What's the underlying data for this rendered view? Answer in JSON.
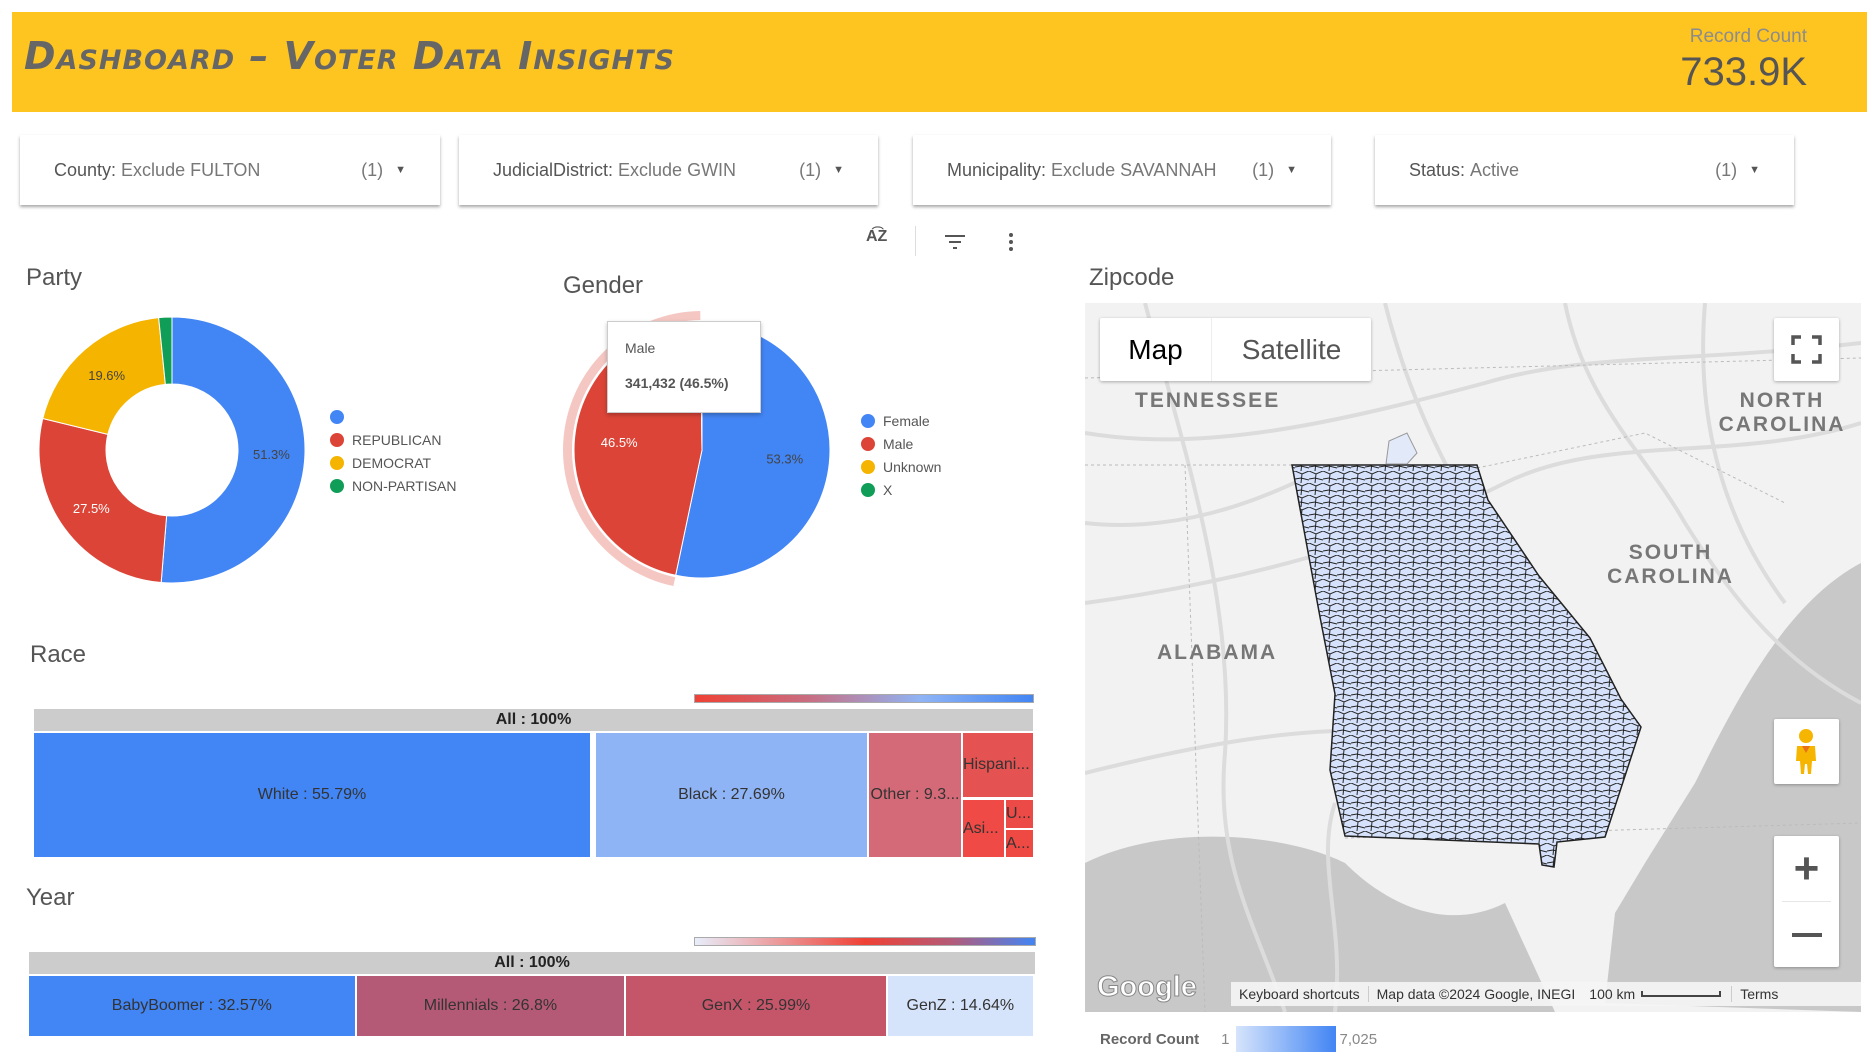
{
  "header": {
    "title": "Dashboard – Voter Data Insights",
    "record_count_label": "Record Count",
    "record_count_value": "733.9K",
    "background": "#fec420"
  },
  "filters": [
    {
      "key": "County:",
      "value": "Exclude FULTON",
      "count": "(1)"
    },
    {
      "key": "JudicialDistrict:",
      "value": "Exclude GWIN",
      "count": "(1)"
    },
    {
      "key": "Municipality:",
      "value": "Exclude SAVANNAH",
      "count": "(1)"
    },
    {
      "key": "Status:",
      "value": "Active",
      "count": "(1)"
    }
  ],
  "toolbar": {
    "icons": [
      "sort-az-icon",
      "filter-icon",
      "more-vert-icon"
    ]
  },
  "chart_data": [
    {
      "type": "pie",
      "variant": "donut",
      "title": "Party",
      "legend_position": "right",
      "categories": [
        "",
        "REPUBLICAN",
        "DEMOCRAT",
        "NON-PARTISAN"
      ],
      "values": [
        51.3,
        27.5,
        19.6,
        1.6
      ],
      "labels": [
        "51.3%",
        "27.5%",
        "19.6%",
        ""
      ],
      "colors": [
        "#4285f4",
        "#db4437",
        "#f4b400",
        "#0f9d58"
      ]
    },
    {
      "type": "pie",
      "title": "Gender",
      "legend_position": "right",
      "categories": [
        "Female",
        "Male",
        "Unknown",
        "X"
      ],
      "values": [
        53.3,
        46.5,
        0.1,
        0.1
      ],
      "labels": [
        "53.3%",
        "46.5%",
        "",
        ""
      ],
      "colors": [
        "#4285f4",
        "#db4437",
        "#f4b400",
        "#0f9d58"
      ],
      "tooltip": {
        "label": "Male",
        "value": "341,432 (46.5%)"
      }
    },
    {
      "type": "treemap",
      "title": "Race",
      "root": "All : 100%",
      "items": [
        {
          "label": "White : 55.79%",
          "value": 55.79,
          "color": "#4285f4"
        },
        {
          "label": "Black : 27.69%",
          "value": 27.69,
          "color": "#8fb4f5"
        },
        {
          "label": "Other : 9.3...",
          "value": 9.3,
          "color": "#d46a78"
        },
        {
          "label": "Hispani...",
          "color": "#e45252"
        },
        {
          "label": "Asi...",
          "color": "#ef4a45"
        },
        {
          "label": "U...",
          "color": "#ec4a47"
        },
        {
          "label": "A...",
          "color": "#ef4944"
        }
      ]
    },
    {
      "type": "treemap",
      "title": "Year",
      "root": "All : 100%",
      "items": [
        {
          "label": "BabyBoomer : 32.57%",
          "value": 32.57,
          "color": "#4285f4"
        },
        {
          "label": "Millennials : 26.8%",
          "value": 26.8,
          "color": "#b55a76"
        },
        {
          "label": "GenX : 25.99%",
          "value": 25.99,
          "color": "#c5566a"
        },
        {
          "label": "GenZ : 14.64%",
          "value": 14.64,
          "color": "#d6e4fb"
        }
      ]
    }
  ],
  "map": {
    "title": "Zipcode",
    "map_type_buttons": [
      "Map",
      "Satellite"
    ],
    "selected_type": "Map",
    "labels": {
      "tn": "TENNESSEE",
      "nc": "NORTH CAROLINA",
      "sc": "SOUTH CAROLINA",
      "al": "ALABAMA"
    },
    "logo": "Google",
    "attribution": {
      "shortcuts": "Keyboard shortcuts",
      "data": "Map data ©2024 Google, INEGI",
      "scale": "100 km",
      "terms": "Terms"
    },
    "legend": {
      "label": "Record Count",
      "min": "1",
      "max": "7,025"
    }
  }
}
